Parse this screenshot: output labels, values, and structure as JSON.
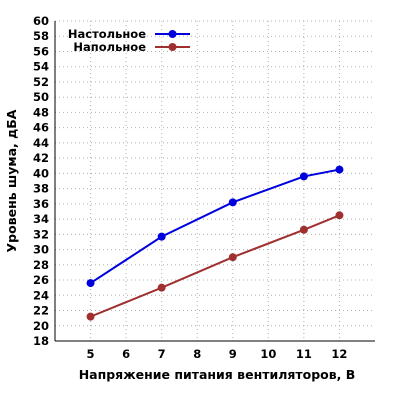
{
  "chart_data": {
    "type": "line",
    "title": "",
    "xlabel": "Напряжение питания вентиляторов, В",
    "ylabel": "Уровень шума, дБА",
    "xlim": [
      4,
      13
    ],
    "ylim": [
      18,
      60
    ],
    "x_ticks": [
      5,
      6,
      7,
      8,
      9,
      10,
      11,
      12
    ],
    "y_ticks": [
      18,
      20,
      22,
      24,
      26,
      28,
      30,
      32,
      34,
      36,
      38,
      40,
      42,
      44,
      46,
      48,
      50,
      52,
      54,
      56,
      58,
      60
    ],
    "grid": true,
    "legend_position": "top-left",
    "series": [
      {
        "name": "Настольное",
        "color": "#0000dd",
        "x": [
          5,
          7,
          9,
          11,
          12
        ],
        "y": [
          25.6,
          31.7,
          36.2,
          39.6,
          40.5
        ]
      },
      {
        "name": "Напольное",
        "color": "#a03030",
        "x": [
          5,
          7,
          9,
          11,
          12
        ],
        "y": [
          21.2,
          25.0,
          29.0,
          32.6,
          34.5
        ]
      }
    ]
  }
}
